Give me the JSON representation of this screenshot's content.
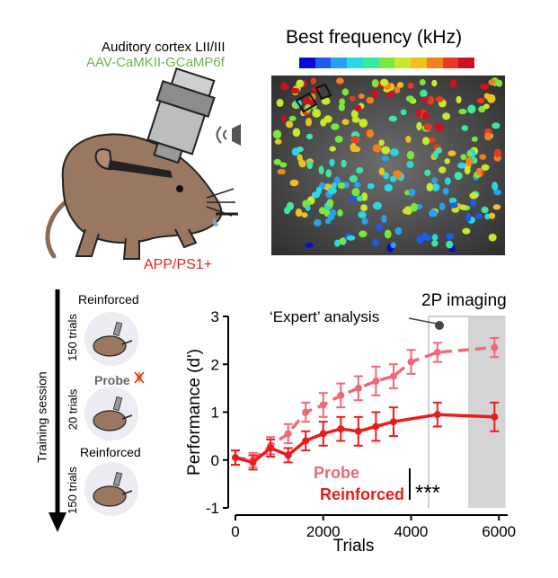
{
  "setup": {
    "region": "Auditory cortex LII/III",
    "virus": "AAV-CaMKII-GCaMP6f",
    "genotype": "APP/PS1+",
    "colors": {
      "virus": "#6fb34a",
      "genotype": "#e8231f"
    }
  },
  "imaging": {
    "title": "Best frequency (kHz)",
    "colorbar": [
      "#0a0ad0",
      "#1f5ae8",
      "#2aa0f0",
      "#2ad8e0",
      "#3ae8a0",
      "#7ae83a",
      "#c8e82a",
      "#f0c020",
      "#f08020",
      "#e83a20",
      "#d01020"
    ]
  },
  "schedule": {
    "axis_label": "Training session",
    "blocks": [
      {
        "label": "Reinforced",
        "trials": "150 trials"
      },
      {
        "label": "Probe",
        "trials": "20 trials"
      },
      {
        "label": "Reinforced",
        "trials": "150 trials"
      }
    ]
  },
  "chart_data": {
    "type": "line",
    "xlabel": "Trials",
    "ylabel": "Performance (d')",
    "xlim": [
      0,
      6200
    ],
    "ylim": [
      -1,
      3
    ],
    "xticks": [
      "0",
      "2000",
      "4000",
      "6000"
    ],
    "yticks": [
      "-1",
      "0",
      "1",
      "2",
      "3"
    ],
    "annotations": {
      "expert": "‘Expert’ analysis",
      "imaging": "2P imaging",
      "significance": "***",
      "imaging_band": [
        5300,
        6150
      ],
      "expert_x": 4400
    },
    "series": [
      {
        "name": "Probe",
        "color": "#f06878",
        "style": "dashed",
        "x": [
          0,
          400,
          800,
          1200,
          1600,
          2000,
          2400,
          2800,
          3200,
          3600,
          4000,
          4600,
          5900
        ],
        "y": [
          0.05,
          0.0,
          0.3,
          0.55,
          1.0,
          1.15,
          1.35,
          1.5,
          1.65,
          1.75,
          2.05,
          2.25,
          2.35
        ],
        "err": [
          0.15,
          0.15,
          0.18,
          0.2,
          0.2,
          0.25,
          0.25,
          0.25,
          0.3,
          0.25,
          0.25,
          0.2,
          0.2
        ]
      },
      {
        "name": "Reinforced",
        "color": "#ea1c1c",
        "style": "solid",
        "x": [
          0,
          400,
          800,
          1200,
          1600,
          2000,
          2400,
          2800,
          3200,
          3600,
          4600,
          5900
        ],
        "y": [
          0.05,
          -0.05,
          0.25,
          0.1,
          0.4,
          0.55,
          0.65,
          0.6,
          0.7,
          0.8,
          0.95,
          0.9
        ],
        "err": [
          0.15,
          0.15,
          0.18,
          0.15,
          0.2,
          0.25,
          0.25,
          0.3,
          0.3,
          0.3,
          0.25,
          0.3
        ]
      }
    ]
  }
}
